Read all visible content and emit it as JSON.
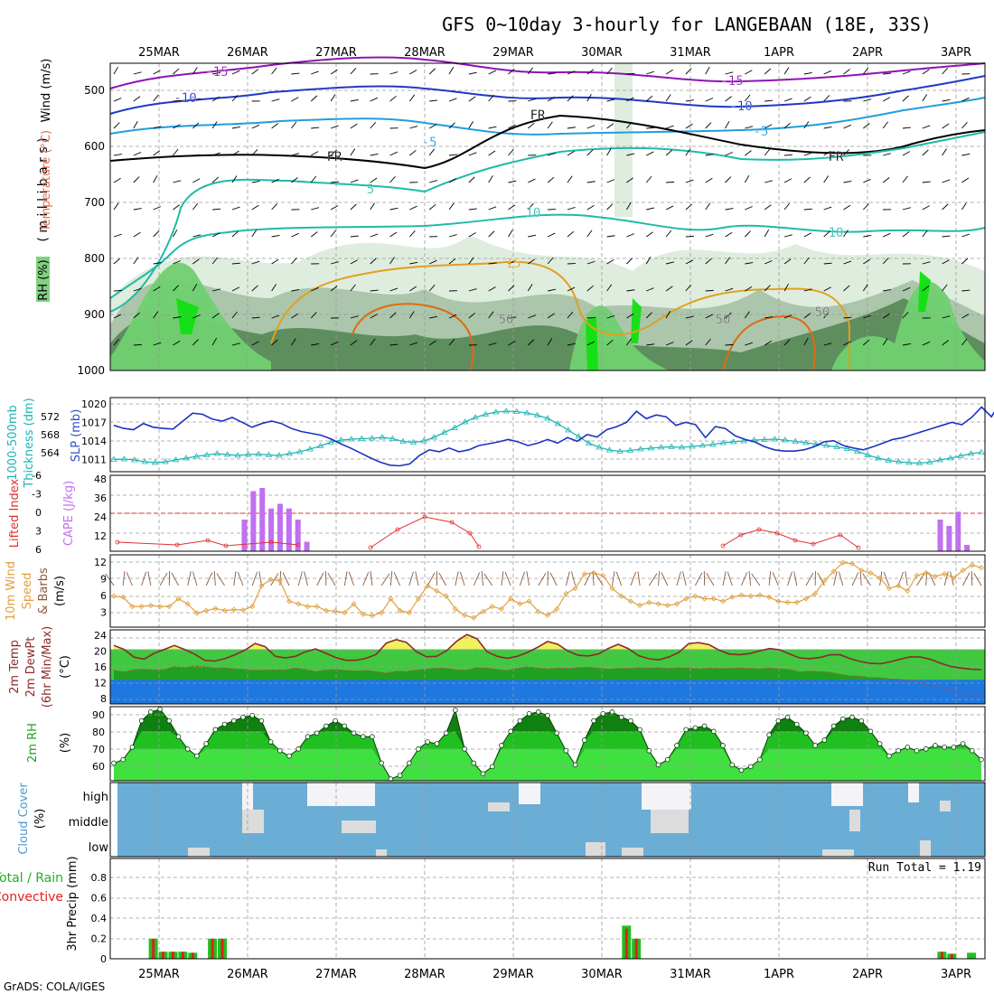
{
  "title": "GFS 0~10day 3-hourly for LANGEBAAN (18E, 33S)",
  "credit": "GrADS: COLA/IGES",
  "colors": {
    "grid": "#9a9a9a",
    "temp_purple": "#8e14b4",
    "temp_blue": "#2038c8",
    "temp_lightblue": "#1e9ee0",
    "temp_teal": "#1fbaa8",
    "temp_orange": "#e0a020",
    "temp_darkorange": "#e06a10",
    "rh_dark": "#5a8a5a",
    "rh_mid": "#a8c4a8",
    "rh_light": "#dcecdc",
    "rh_green": "#70d070",
    "rh_bright": "#10e010",
    "slp_line": "#1a34c0",
    "thick_line": "#20b4b4",
    "cape_bar": "#c070f0",
    "li_line": "#e03030",
    "wind_line": "#e0a040",
    "barb": "#8c5a3c",
    "temp_fill": "#40c840",
    "temp_top": "#f0f060",
    "dew_fill": "#20a020",
    "dew_blue": "#1e78e0",
    "rh2_light": "#40e040",
    "rh2_mid": "#20c020",
    "rh2_dark": "#108010",
    "cloud_blue": "#6aaed6",
    "cloud_white": "#f4f4f8",
    "cloud_gray": "#dcdcdc",
    "precip_green": "#20c020",
    "precip_red": "#e02020"
  },
  "date_labels": [
    "25MAR",
    "26MAR",
    "27MAR",
    "28MAR",
    "29MAR",
    "30MAR",
    "31MAR",
    "1APR",
    "2APR",
    "3APR"
  ],
  "panels": {
    "upper": {
      "ylabel_wind": "Wind (m/s)",
      "ylabel_temp": "Temperature (°C)",
      "ylabel_mb": "( m i l l i b a r s )",
      "ylabel_rh": "RH (%)",
      "yticks": [
        "500",
        "600",
        "700",
        "800",
        "900",
        "1000"
      ],
      "contour_labels": [
        "-15",
        "-10",
        "-5",
        "FR",
        "5",
        "10",
        "15",
        "50"
      ]
    },
    "slp": {
      "ylabel_slp": "SLP (mb)",
      "ylabel_thick": "Thickness (dm)",
      "ylabel_thick2": "1000-500mb",
      "slp_ticks": [
        "1020",
        "1017",
        "1014",
        "1011"
      ],
      "thick_ticks": [
        "572",
        "568",
        "564"
      ]
    },
    "cape": {
      "ylabel_li": "Lifted Index",
      "ylabel_cape": "CAPE (J/kg)",
      "li_ticks": [
        "-6",
        "-3",
        "0",
        "3",
        "6"
      ],
      "cape_ticks": [
        "48",
        "36",
        "24",
        "12"
      ]
    },
    "wind": {
      "ylabel1": "10m Wind",
      "ylabel2": "Speed",
      "ylabel3": "& Barbs",
      "ylabel4": "(m/s)",
      "yticks": [
        "12",
        "9",
        "6",
        "3"
      ]
    },
    "temp2m": {
      "ylabel1": "2m Temp",
      "ylabel2": "2m DewPt",
      "ylabel3": "(6hr Min/Max)",
      "ylabel4": "(°C)",
      "yticks": [
        "24",
        "20",
        "16",
        "12",
        "8"
      ]
    },
    "rh2m": {
      "ylabel1": "2m RH",
      "ylabel2": "(%)",
      "yticks": [
        "90",
        "80",
        "70",
        "60"
      ]
    },
    "cloud": {
      "ylabel1": "Cloud Cover",
      "ylabel2": "(%)",
      "levels": [
        "high",
        "middle",
        "low"
      ]
    },
    "precip": {
      "ylabel1": "3hr Precip (mm)",
      "ylabel2": "Total / Rain",
      "ylabel3": "Convective",
      "run_total": "Run Total = 1.19",
      "yticks": [
        "0.8",
        "0.6",
        "0.4",
        "0.2",
        "0"
      ]
    }
  },
  "chart_data": [
    {
      "type": "line",
      "title": "SLP (mb)",
      "x_unit": "3-hourly steps from 24MAR 12Z",
      "ylim": [
        1009,
        1021
      ],
      "series": [
        {
          "name": "SLP (mb)",
          "values": [
            1016.5,
            1016,
            1015.8,
            1016.8,
            1016.2,
            1016,
            1015.9,
            1017.2,
            1018.5,
            1018.3,
            1017.5,
            1017.2,
            1017.8,
            1017,
            1016.2,
            1016.8,
            1017.2,
            1016.8,
            1016,
            1015.5,
            1015.2,
            1014.9,
            1014.3,
            1013.5,
            1012.8,
            1012,
            1011.2,
            1010.5,
            1010,
            1009.9,
            1010.2,
            1011.6,
            1012.5,
            1012.2,
            1012.8,
            1012.2,
            1012.5,
            1013.2,
            1013.5,
            1013.8,
            1014.2,
            1013.8,
            1013.2,
            1013.6,
            1014.2,
            1013.6,
            1014.5,
            1013.9,
            1015,
            1014.6,
            1015.8,
            1016.3,
            1017,
            1018.8,
            1017.6,
            1018.2,
            1017.9,
            1016.5,
            1017,
            1016.6,
            1014.5,
            1016.3,
            1016,
            1014.8,
            1014.2,
            1013.8,
            1013,
            1012.5,
            1012.3,
            1012.3,
            1012.5,
            1013,
            1013.8,
            1014,
            1013.2,
            1012.8,
            1012.5,
            1013,
            1013.6,
            1014.2,
            1014.5,
            1015,
            1015.5,
            1016,
            1016.5,
            1017,
            1016.6,
            1017.8,
            1019.5,
            1017.9,
            1020.5
          ]
        }
      ]
    },
    {
      "type": "line",
      "title": "Thickness 1000-500mb (dm)",
      "ylim": [
        560,
        575
      ],
      "series": [
        {
          "name": "Thickness (dm)",
          "values": [
            562.5,
            562.6,
            562.4,
            562,
            561.8,
            562,
            562.4,
            562.8,
            563.2,
            563.5,
            563.8,
            563.6,
            563.4,
            563.6,
            563.7,
            563.5,
            563.4,
            563.8,
            564.2,
            564.8,
            565.5,
            566.3,
            566.8,
            567,
            567.1,
            567.2,
            567.4,
            567.1,
            566.5,
            566.3,
            566.6,
            567.4,
            568.5,
            569.5,
            570.8,
            571.8,
            572.5,
            573,
            573.2,
            573.1,
            572.8,
            572.3,
            571.6,
            570.4,
            569,
            567.6,
            566.1,
            565.2,
            564.6,
            564.3,
            564.5,
            564.8,
            565,
            565.2,
            565.3,
            565.2,
            565.4,
            565.6,
            565.8,
            566.2,
            566.4,
            566.6,
            566.8,
            566.9,
            567,
            566.8,
            566.5,
            566.2,
            565.9,
            565.6,
            565.3,
            564.9,
            564.3,
            563.5,
            562.8,
            562.3,
            562,
            561.8,
            561.7,
            561.9,
            562.4,
            562.8,
            563.3,
            563.8,
            564.1
          ]
        }
      ]
    },
    {
      "type": "bar",
      "title": "CAPE (J/kg)",
      "ylim": [
        0,
        48
      ],
      "series": [
        {
          "name": "CAPE (J/kg)",
          "values": [
            0,
            0,
            0,
            0,
            0,
            0,
            0,
            0,
            0,
            0,
            0,
            0,
            20,
            38,
            40,
            27,
            30,
            27,
            20,
            6,
            0,
            0,
            0,
            0,
            0,
            0,
            0,
            0,
            0,
            0,
            0,
            0,
            0,
            0,
            0,
            0,
            0,
            0,
            0,
            0,
            0,
            0,
            0,
            0,
            0,
            0,
            0,
            0,
            0,
            0,
            0,
            0,
            0,
            0,
            0,
            0,
            0,
            0,
            0,
            0,
            0,
            0,
            0,
            0,
            0,
            0,
            0,
            0,
            0,
            0,
            0,
            0,
            0,
            0,
            0,
            0,
            0,
            0,
            0,
            0,
            0,
            0,
            0,
            0,
            0,
            0,
            0,
            0,
            0,
            0,
            20,
            16,
            25,
            4,
            0
          ]
        }
      ]
    },
    {
      "type": "line",
      "title": "10m Wind Speed (m/s)",
      "ylim": [
        0,
        13
      ],
      "series": [
        {
          "name": "Speed (m/s)",
          "values": [
            6,
            5.8,
            4,
            4,
            4.2,
            4,
            4,
            5.5,
            4.5,
            2.7,
            3.2,
            3.6,
            3.2,
            3.4,
            3.3,
            4,
            8,
            9.2,
            9,
            5,
            4.5,
            4,
            4,
            3.2,
            3.1,
            2.8,
            4.5,
            2.5,
            2.2,
            2.8,
            5.5,
            3.2,
            2.8,
            5.5,
            8,
            7,
            6,
            3.5,
            2.3,
            1.8,
            3,
            4,
            3.5,
            5.5,
            4.5,
            5,
            3,
            2.3,
            3.5,
            6.5,
            7.5,
            10.3,
            10.5,
            10,
            7.5,
            6,
            5,
            4.2,
            4.8,
            4.5,
            4.2,
            4.5,
            5.5,
            6,
            5.5,
            5.5,
            5,
            5.8,
            6.2,
            6,
            6.2,
            5.8,
            5,
            4.8,
            4.8,
            5.5,
            6.5,
            9,
            10.8,
            12.5,
            12.3,
            11,
            10.5,
            9.5,
            7.5,
            8,
            7,
            10,
            10.5,
            9.8,
            10.3,
            9.5,
            11,
            12,
            11.5
          ]
        }
      ]
    },
    {
      "type": "area",
      "title": "2m Temp / 2m DewPt (°C)",
      "ylim": [
        6,
        26
      ],
      "series": [
        {
          "name": "2m Temp",
          "values": [
            21,
            20,
            18,
            17.5,
            19,
            20,
            21,
            20,
            18.8,
            17.2,
            17,
            17.6,
            18.6,
            19.8,
            21.5,
            20.7,
            18.2,
            17.8,
            18.2,
            19.4,
            20.1,
            19,
            17.9,
            17.2,
            17.2,
            17.7,
            18.7,
            21.6,
            22.5,
            21.8,
            19.4,
            18.1,
            18.2,
            19.7,
            22.1,
            23.8,
            22.7,
            19.4,
            18.2,
            17.7,
            18.2,
            19.2,
            20.5,
            22,
            21.3,
            19.6,
            18.5,
            18.3,
            18.8,
            20.2,
            21.3,
            20.2,
            18.4,
            17.6,
            17.3,
            18,
            19.2,
            21.5,
            21.7,
            21.2,
            19.8,
            18.8,
            18.6,
            18.9,
            19.6,
            20.2,
            19.9,
            18.8,
            17.8,
            17.6,
            17.9,
            18.6,
            18.6,
            17.6,
            16.9,
            16.4,
            16.3,
            16.8,
            17.5,
            18.1,
            18,
            17.4,
            16.4,
            15.6,
            15.2,
            14.9,
            14.8
          ]
        },
        {
          "name": "2m DewPt",
          "values": [
            14.6,
            14.2,
            14.8,
            14.9,
            14.7,
            14.8,
            15.6,
            15.3,
            15.7,
            15.6,
            15.2,
            15.3,
            15,
            14.8,
            14.6,
            14.7,
            14.7,
            14.7,
            15.2,
            14.8,
            14.3,
            14.7,
            14.8,
            14.6,
            14.4,
            14.6,
            14.3,
            13.9,
            14.4,
            14.3,
            14.7,
            14.9,
            15.2,
            15.1,
            14.7,
            14.7,
            15.3,
            15.2,
            14.8,
            14.6,
            15.1,
            15.5,
            15.2,
            15,
            15.2,
            15.1,
            15.3,
            15.4,
            15.2,
            14.9,
            15.1,
            15.1,
            15.3,
            15.2,
            15.3,
            15.1,
            15.3,
            15.2,
            15,
            15.2,
            15.1,
            15.1,
            15.2,
            15.1,
            15,
            15.2,
            15,
            14.8,
            14.2,
            14.4,
            14.3,
            14.1,
            13.6,
            13.2,
            13.1,
            12.8,
            12.7,
            12.4,
            12.3,
            12,
            11.3,
            10.8,
            10.2,
            9.6,
            9,
            8.3,
            7.7
          ]
        }
      ]
    },
    {
      "type": "area",
      "title": "2m RH (%)",
      "ylim": [
        52,
        95
      ],
      "series": [
        {
          "name": "2m RH (%)",
          "values": [
            62,
            64,
            71,
            86,
            91,
            92.5,
            86,
            77,
            70,
            66,
            73,
            81,
            84,
            86,
            88,
            89,
            86,
            74,
            69,
            66,
            70,
            77,
            79,
            83,
            86,
            83,
            79,
            77,
            77,
            62,
            53,
            55,
            62,
            70,
            74,
            73,
            79,
            92,
            70,
            62,
            56,
            60,
            72,
            80,
            86,
            90,
            91,
            89,
            79,
            69,
            61,
            75,
            86,
            90,
            91,
            88,
            86,
            81,
            69,
            61,
            64,
            72,
            81,
            82,
            83,
            80,
            72,
            61,
            58,
            60,
            64,
            78,
            86,
            88,
            84,
            79,
            72,
            75,
            83,
            87,
            88,
            86,
            80,
            73,
            66,
            69,
            71,
            69,
            70,
            72,
            71,
            71,
            73,
            69,
            64
          ]
        }
      ]
    },
    {
      "type": "bar",
      "title": "3hr Precip (mm)",
      "ylim": [
        0,
        1
      ],
      "series": [
        {
          "name": "Total / Rain",
          "values": [
            0,
            0,
            0,
            0,
            0.2,
            0.07,
            0.07,
            0.07,
            0.06,
            0,
            0.2,
            0.2,
            0,
            0,
            0,
            0,
            0,
            0,
            0,
            0,
            0,
            0,
            0,
            0,
            0,
            0,
            0,
            0,
            0,
            0,
            0,
            0,
            0,
            0,
            0,
            0,
            0,
            0,
            0,
            0,
            0,
            0,
            0,
            0,
            0,
            0,
            0,
            0,
            0,
            0,
            0,
            0,
            0.33,
            0.2,
            0,
            0,
            0,
            0,
            0,
            0,
            0,
            0,
            0,
            0,
            0,
            0,
            0,
            0,
            0,
            0,
            0,
            0,
            0,
            0,
            0,
            0,
            0,
            0,
            0,
            0,
            0,
            0,
            0,
            0,
            0.07,
            0.05,
            0,
            0.06,
            0
          ]
        },
        {
          "name": "Convective",
          "values": [
            0,
            0,
            0,
            0,
            0.2,
            0.07,
            0.07,
            0.07,
            0.06,
            0,
            0.2,
            0.2,
            0,
            0,
            0,
            0,
            0,
            0,
            0,
            0,
            0,
            0,
            0,
            0,
            0,
            0,
            0,
            0,
            0,
            0,
            0,
            0,
            0,
            0,
            0,
            0,
            0,
            0,
            0,
            0,
            0,
            0,
            0,
            0,
            0,
            0,
            0,
            0,
            0,
            0,
            0,
            0,
            0.3,
            0.2,
            0,
            0,
            0,
            0,
            0,
            0,
            0,
            0,
            0,
            0,
            0,
            0,
            0,
            0,
            0,
            0,
            0,
            0,
            0,
            0,
            0,
            0,
            0,
            0,
            0,
            0,
            0,
            0,
            0,
            0,
            0.07,
            0.05,
            0,
            0,
            0
          ]
        }
      ]
    }
  ]
}
